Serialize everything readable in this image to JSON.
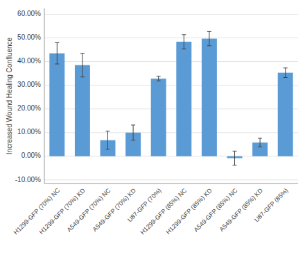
{
  "chart_data": {
    "type": "bar",
    "ylabel": "Increased Wound Healing Confluence",
    "categories": [
      "H1299-GFP (70%) NC",
      "H1299-GFP (70%) KD",
      "A549-GFP (70%) NC",
      "A549-GFP (70%) KD",
      "U87-GFP (70%)",
      "H1299-GFP (85%) NC",
      "H1299-GFP (85%) KD",
      "A549-GFP (85%) NC",
      "A549-GFP (85%) KD",
      "U87-GFP (85%)"
    ],
    "values": [
      0.435,
      0.385,
      0.068,
      0.1,
      0.328,
      0.484,
      0.497,
      -0.008,
      0.058,
      0.353
    ],
    "errors": [
      0.045,
      0.05,
      0.038,
      0.032,
      0.01,
      0.03,
      0.03,
      0.03,
      0.018,
      0.02
    ],
    "color": "#5B9BD5",
    "ylim": [
      -0.115,
      0.625
    ],
    "yticks": [
      {
        "value": -0.1,
        "label": "-10.00%"
      },
      {
        "value": 0.0,
        "label": "0.00%"
      },
      {
        "value": 0.1,
        "label": "10.00%"
      },
      {
        "value": 0.2,
        "label": "20.00%"
      },
      {
        "value": 0.3,
        "label": "30.00%"
      },
      {
        "value": 0.4,
        "label": "40.00%"
      },
      {
        "value": 0.5,
        "label": "50.00%"
      },
      {
        "value": 0.6,
        "label": "60.00%"
      }
    ],
    "grid": true
  }
}
